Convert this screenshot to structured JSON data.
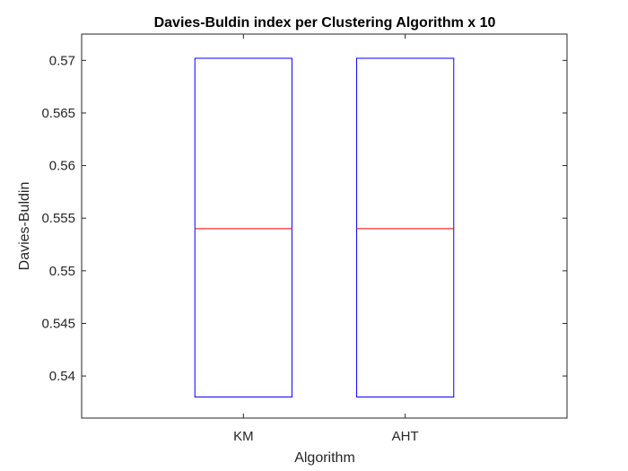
{
  "chart_data": {
    "type": "box",
    "title": "Davies-Buldin index per Clustering Algorithm x 10",
    "xlabel": "Algorithm",
    "ylabel": "Davies-Buldin",
    "categories": [
      "KM",
      "AHT"
    ],
    "ylim": [
      0.536,
      0.5725
    ],
    "yticks": [
      0.54,
      0.545,
      0.55,
      0.555,
      0.56,
      0.565,
      0.57
    ],
    "ytick_labels": [
      "0.54",
      "0.545",
      "0.55",
      "0.555",
      "0.56",
      "0.565",
      "0.57"
    ],
    "boxes": [
      {
        "category": "KM",
        "q1": 0.538,
        "median": 0.554,
        "q3": 0.5702
      },
      {
        "category": "AHT",
        "q1": 0.538,
        "median": 0.554,
        "q3": 0.5702
      }
    ],
    "grid": false,
    "colors": {
      "box": "#0000ff",
      "median": "#ff0000",
      "axes": "#262626"
    }
  }
}
